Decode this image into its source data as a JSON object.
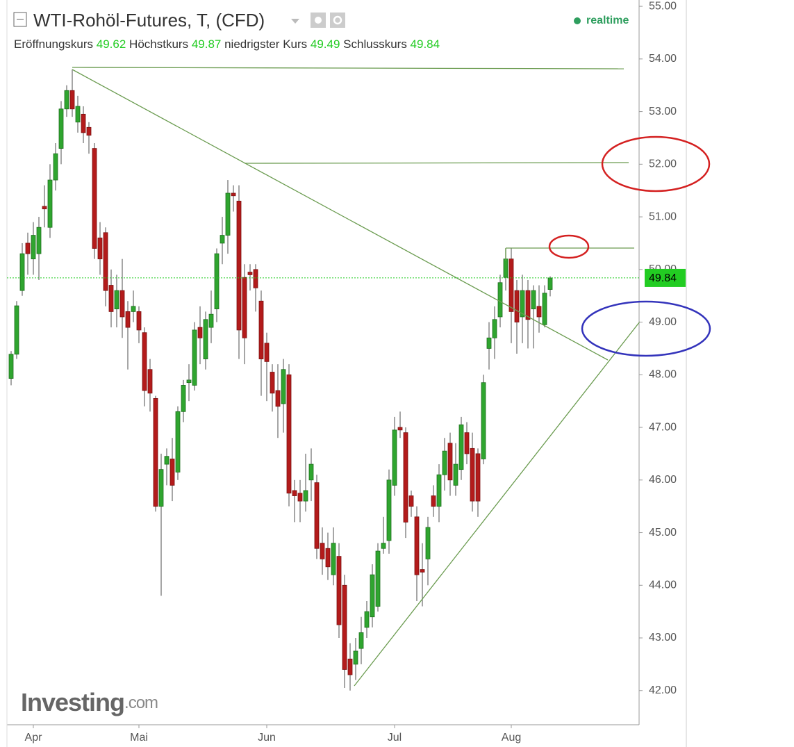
{
  "header": {
    "title": "WTI-Rohöl-Futures, T, (CFD)",
    "status": "realtime",
    "open_label": "Eröffnungskurs",
    "open": 49.62,
    "high_label": "Höchstkurs",
    "high": 49.87,
    "low_label": "niedrigster Kurs",
    "low": 49.49,
    "close_label": "Schlusskurs",
    "close": 49.84
  },
  "watermark": {
    "brand": "Investing",
    "suffix": ".com"
  },
  "chart_data": {
    "type": "candlestick",
    "categories": [
      null,
      null,
      null,
      null,
      "Apr",
      null,
      null,
      null,
      null,
      null,
      null,
      null,
      null,
      null,
      null,
      null,
      null,
      null,
      null,
      null,
      null,
      null,
      null,
      "Mai",
      null,
      null,
      null,
      null,
      null,
      null,
      null,
      null,
      null,
      null,
      null,
      null,
      null,
      null,
      null,
      null,
      null,
      null,
      null,
      null,
      null,
      null,
      "Jun",
      null,
      null,
      null,
      null,
      null,
      null,
      null,
      null,
      null,
      null,
      null,
      null,
      null,
      null,
      null,
      null,
      null,
      null,
      null,
      null,
      null,
      null,
      "Jul",
      null,
      null,
      null,
      null,
      null,
      null,
      null,
      null,
      null,
      null,
      null,
      null,
      null,
      null,
      null,
      null,
      null,
      null,
      null,
      null,
      "Aug",
      null,
      null,
      null,
      null,
      null,
      null,
      null
    ],
    "open": [
      47.93,
      48.39,
      49.6,
      50.5,
      50.2,
      50.3,
      51.2,
      50.8,
      51.7,
      52.3,
      53.05,
      53.4,
      52.8,
      52.95,
      52.7,
      52.3,
      50.6,
      50.7,
      49.7,
      49.25,
      49.6,
      49.2,
      49.2,
      49.2,
      48.8,
      48.1,
      47.55,
      45.5,
      46.3,
      46.4,
      46.15,
      47.3,
      47.85,
      47.8,
      48.9,
      48.3,
      48.9,
      49.25,
      50.5,
      50.65,
      51.45,
      51.3,
      49.85,
      49.95,
      50.0,
      49.4,
      48.6,
      48.05,
      47.7,
      47.45,
      48.0,
      45.8,
      45.75,
      45.6,
      46.0,
      45.95,
      44.8,
      44.7,
      44.2,
      44.55,
      44.0,
      42.6,
      42.5,
      42.8,
      43.2,
      43.4,
      43.6,
      44.7,
      44.85,
      45.9,
      47.0,
      46.9,
      45.7,
      45.3,
      44.3,
      44.5,
      45.7,
      45.5,
      46.1,
      46.7,
      45.9,
      46.2,
      46.9,
      46.6,
      46.5,
      46.4,
      48.5,
      48.7,
      49.1,
      49.85,
      50.2,
      49.6,
      49.1,
      49.6,
      49.25,
      49.3,
      48.95,
      49.62
    ],
    "high": [
      48.45,
      49.4,
      50.5,
      50.7,
      50.9,
      51.0,
      51.6,
      52.0,
      52.4,
      53.2,
      53.5,
      53.8,
      53.3,
      53.1,
      52.8,
      52.4,
      50.9,
      50.8,
      50.0,
      49.9,
      50.2,
      49.4,
      49.6,
      49.3,
      48.9,
      48.3,
      47.6,
      46.5,
      46.6,
      46.8,
      47.4,
      47.9,
      48.2,
      49.0,
      49.3,
      49.2,
      49.6,
      50.4,
      51.0,
      51.7,
      51.6,
      51.6,
      50.1,
      50.1,
      50.1,
      49.6,
      48.8,
      48.2,
      48.2,
      48.3,
      48.2,
      46.0,
      46.0,
      46.5,
      46.6,
      46.1,
      45.1,
      45.0,
      45.1,
      44.8,
      44.2,
      42.9,
      43.0,
      43.4,
      43.7,
      44.4,
      44.8,
      45.3,
      46.2,
      47.2,
      47.3,
      47.0,
      45.8,
      45.5,
      44.8,
      45.3,
      45.9,
      46.3,
      46.8,
      46.9,
      46.7,
      47.2,
      47.1,
      46.9,
      46.6,
      48.0,
      49.0,
      49.3,
      49.9,
      50.4,
      50.4,
      49.8,
      49.9,
      49.8,
      49.7,
      49.7,
      49.7,
      49.87
    ],
    "low": [
      47.8,
      48.3,
      49.5,
      49.9,
      49.9,
      49.8,
      50.8,
      50.6,
      51.5,
      52.0,
      52.9,
      52.9,
      52.6,
      52.4,
      52.2,
      50.2,
      49.9,
      49.3,
      48.9,
      48.9,
      48.7,
      48.1,
      49.0,
      48.6,
      47.4,
      47.3,
      45.4,
      43.8,
      45.9,
      45.6,
      46.0,
      47.1,
      47.5,
      47.7,
      48.2,
      48.1,
      48.6,
      49.0,
      50.1,
      50.3,
      51.1,
      48.3,
      48.2,
      49.6,
      49.2,
      47.6,
      47.5,
      47.3,
      46.8,
      46.9,
      45.5,
      45.2,
      45.2,
      45.4,
      45.6,
      44.5,
      44.2,
      44.1,
      44.0,
      43.0,
      42.05,
      42.0,
      42.2,
      42.5,
      43.0,
      43.2,
      43.5,
      44.6,
      44.6,
      45.7,
      46.8,
      44.9,
      45.3,
      43.7,
      43.6,
      44.0,
      45.3,
      45.2,
      45.8,
      45.7,
      45.7,
      46.0,
      46.3,
      45.4,
      45.3,
      46.3,
      48.1,
      48.3,
      48.9,
      49.6,
      48.6,
      48.4,
      48.6,
      48.5,
      48.5,
      48.8,
      48.9,
      49.49
    ],
    "close": [
      48.39,
      49.31,
      50.3,
      50.3,
      50.65,
      50.8,
      51.15,
      51.7,
      52.2,
      53.05,
      53.4,
      53.05,
      53.1,
      52.6,
      52.55,
      50.4,
      50.2,
      49.6,
      49.2,
      49.6,
      49.1,
      48.9,
      49.3,
      48.85,
      47.7,
      47.65,
      45.5,
      46.2,
      46.45,
      45.9,
      47.3,
      47.8,
      47.9,
      48.85,
      48.7,
      49.05,
      49.15,
      50.3,
      50.65,
      51.45,
      51.4,
      48.85,
      48.7,
      49.9,
      49.65,
      48.3,
      48.25,
      47.65,
      47.4,
      48.1,
      45.75,
      45.7,
      45.6,
      45.8,
      46.3,
      44.7,
      44.5,
      44.35,
      44.8,
      43.25,
      42.4,
      42.3,
      42.75,
      43.1,
      43.5,
      44.2,
      44.65,
      44.8,
      46.0,
      46.95,
      46.95,
      45.2,
      45.5,
      44.2,
      44.25,
      45.1,
      45.5,
      46.1,
      46.55,
      46.0,
      46.3,
      47.05,
      46.5,
      45.6,
      45.6,
      47.85,
      48.7,
      49.05,
      49.75,
      50.2,
      49.2,
      49.0,
      49.6,
      49.05,
      49.6,
      49.1,
      49.55,
      49.84
    ],
    "ylim": [
      41.35,
      55.12
    ],
    "yticks": [
      {
        "value": 42,
        "label": "42.00"
      },
      {
        "value": 43,
        "label": "43.00"
      },
      {
        "value": 44,
        "label": "44.00"
      },
      {
        "value": 45,
        "label": "45.00"
      },
      {
        "value": 46,
        "label": "46.00"
      },
      {
        "value": 47,
        "label": "47.00"
      },
      {
        "value": 48,
        "label": "48.00"
      },
      {
        "value": 49,
        "label": "49.00"
      },
      {
        "value": 50,
        "label": "50.00"
      },
      {
        "value": 51,
        "label": "51.00"
      },
      {
        "value": 52,
        "label": "52.00"
      },
      {
        "value": 53,
        "label": "53.00"
      },
      {
        "value": 54,
        "label": "54.00"
      },
      {
        "value": 55,
        "label": "55.00"
      }
    ],
    "last_price": 49.84,
    "up_color": "#2fa52f",
    "down_color": "#b31b1b",
    "last_price_color": "#22cc22"
  }
}
